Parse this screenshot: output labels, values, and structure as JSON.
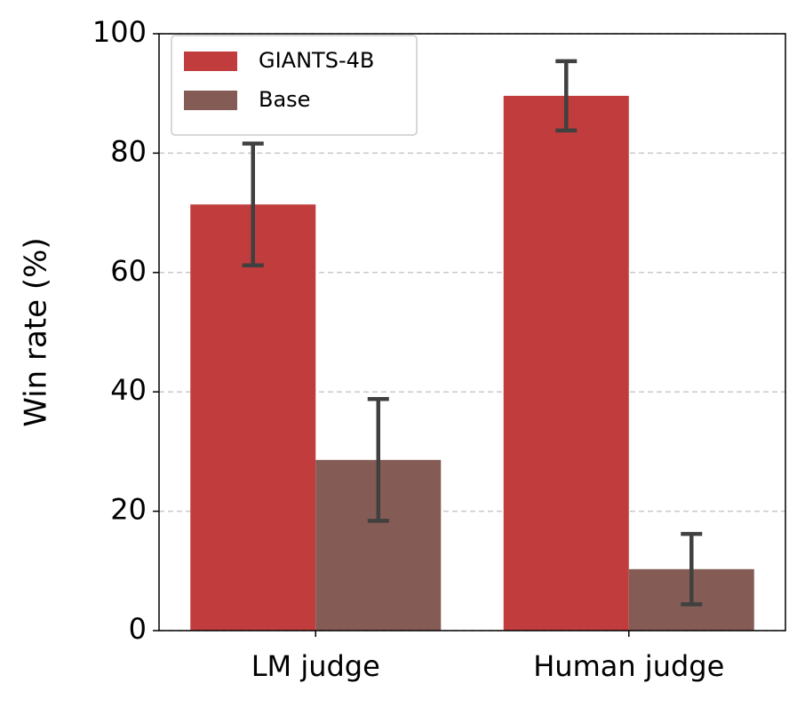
{
  "chart_data": {
    "type": "bar",
    "ylabel": "Win rate (%)",
    "categories": [
      "LM judge",
      "Human judge"
    ],
    "series": [
      {
        "name": "GIANTS-4B",
        "color": "#c13c3c",
        "values": [
          71.4,
          89.6
        ],
        "errors": [
          10.2,
          5.8
        ]
      },
      {
        "name": "Base",
        "color": "#855c55",
        "values": [
          28.6,
          10.3
        ],
        "errors": [
          10.2,
          5.9
        ]
      }
    ],
    "ylim": [
      0,
      100
    ],
    "yticks": [
      0,
      20,
      40,
      60,
      80,
      100
    ],
    "grid": true,
    "legend": "upper left"
  }
}
